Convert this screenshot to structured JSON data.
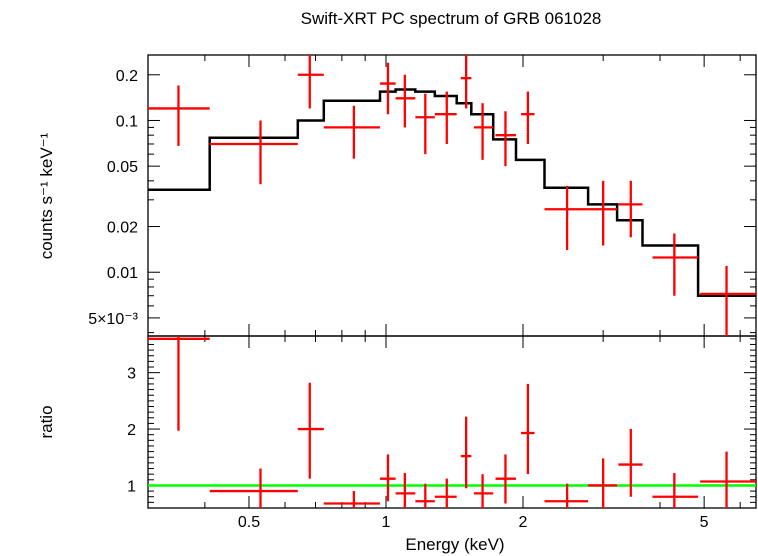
{
  "chart_data": [
    {
      "type": "scatter",
      "title": "Swift-XRT PC spectrum of GRB 061028",
      "ylabel": "counts s⁻¹ keV⁻¹",
      "xlabel": "",
      "xscale": "log",
      "yscale": "log",
      "xlim": [
        0.3,
        6.5
      ],
      "ylim": [
        0.0038,
        0.27
      ],
      "y_ticks": [
        {
          "value": 0.005,
          "label": "5×10⁻³"
        },
        {
          "value": 0.01,
          "label": "0.01"
        },
        {
          "value": 0.02,
          "label": "0.02"
        },
        {
          "value": 0.05,
          "label": "0.05"
        },
        {
          "value": 0.1,
          "label": "0.1"
        },
        {
          "value": 0.2,
          "label": "0.2"
        }
      ],
      "data_color": "#ff0000",
      "model_color": "#000000",
      "series": [
        {
          "kind": "data",
          "points": [
            {
              "x": 0.35,
              "xlo": 0.3,
              "xhi": 0.41,
              "y": 0.12,
              "ylo": 0.068,
              "yhi": 0.17
            },
            {
              "x": 0.53,
              "xlo": 0.41,
              "xhi": 0.64,
              "y": 0.07,
              "ylo": 0.038,
              "yhi": 0.1
            },
            {
              "x": 0.68,
              "xlo": 0.64,
              "xhi": 0.73,
              "y": 0.2,
              "ylo": 0.12,
              "yhi": 0.29
            },
            {
              "x": 0.85,
              "xlo": 0.73,
              "xhi": 0.97,
              "y": 0.09,
              "ylo": 0.056,
              "yhi": 0.125
            },
            {
              "x": 1.01,
              "xlo": 0.97,
              "xhi": 1.05,
              "y": 0.175,
              "ylo": 0.11,
              "yhi": 0.24
            },
            {
              "x": 1.1,
              "xlo": 1.05,
              "xhi": 1.16,
              "y": 0.14,
              "ylo": 0.09,
              "yhi": 0.2
            },
            {
              "x": 1.22,
              "xlo": 1.16,
              "xhi": 1.28,
              "y": 0.105,
              "ylo": 0.06,
              "yhi": 0.15
            },
            {
              "x": 1.36,
              "xlo": 1.28,
              "xhi": 1.43,
              "y": 0.11,
              "ylo": 0.07,
              "yhi": 0.155
            },
            {
              "x": 1.5,
              "xlo": 1.46,
              "xhi": 1.54,
              "y": 0.19,
              "ylo": 0.12,
              "yhi": 0.29
            },
            {
              "x": 1.63,
              "xlo": 1.56,
              "xhi": 1.72,
              "y": 0.09,
              "ylo": 0.055,
              "yhi": 0.13
            },
            {
              "x": 1.83,
              "xlo": 1.74,
              "xhi": 1.93,
              "y": 0.08,
              "ylo": 0.05,
              "yhi": 0.115
            },
            {
              "x": 2.05,
              "xlo": 1.98,
              "xhi": 2.12,
              "y": 0.11,
              "ylo": 0.07,
              "yhi": 0.155
            },
            {
              "x": 2.5,
              "xlo": 2.23,
              "xhi": 2.78,
              "y": 0.026,
              "ylo": 0.014,
              "yhi": 0.037
            },
            {
              "x": 3.0,
              "xlo": 2.78,
              "xhi": 3.22,
              "y": 0.026,
              "ylo": 0.015,
              "yhi": 0.04
            },
            {
              "x": 3.45,
              "xlo": 3.24,
              "xhi": 3.66,
              "y": 0.028,
              "ylo": 0.017,
              "yhi": 0.04
            },
            {
              "x": 4.3,
              "xlo": 3.85,
              "xhi": 4.85,
              "y": 0.0125,
              "ylo": 0.007,
              "yhi": 0.018
            },
            {
              "x": 5.6,
              "xlo": 4.9,
              "xhi": 6.5,
              "y": 0.0072,
              "ylo": 0.0038,
              "yhi": 0.011
            }
          ]
        },
        {
          "kind": "model",
          "steps": [
            {
              "xlo": 0.3,
              "xhi": 0.41,
              "y": 0.035
            },
            {
              "xlo": 0.41,
              "xhi": 0.64,
              "y": 0.077
            },
            {
              "xlo": 0.64,
              "xhi": 0.73,
              "y": 0.1
            },
            {
              "xlo": 0.73,
              "xhi": 0.97,
              "y": 0.135
            },
            {
              "xlo": 0.97,
              "xhi": 1.05,
              "y": 0.155
            },
            {
              "xlo": 1.05,
              "xhi": 1.16,
              "y": 0.16
            },
            {
              "xlo": 1.16,
              "xhi": 1.28,
              "y": 0.155
            },
            {
              "xlo": 1.28,
              "xhi": 1.43,
              "y": 0.145
            },
            {
              "xlo": 1.43,
              "xhi": 1.54,
              "y": 0.13
            },
            {
              "xlo": 1.54,
              "xhi": 1.72,
              "y": 0.11
            },
            {
              "xlo": 1.72,
              "xhi": 1.93,
              "y": 0.075
            },
            {
              "xlo": 1.93,
              "xhi": 2.23,
              "y": 0.055
            },
            {
              "xlo": 2.23,
              "xhi": 2.78,
              "y": 0.036
            },
            {
              "xlo": 2.78,
              "xhi": 3.22,
              "y": 0.028
            },
            {
              "xlo": 3.22,
              "xhi": 3.66,
              "y": 0.022
            },
            {
              "xlo": 3.66,
              "xhi": 4.85,
              "y": 0.015
            },
            {
              "xlo": 4.85,
              "xhi": 6.5,
              "y": 0.007
            }
          ]
        }
      ]
    },
    {
      "type": "scatter",
      "title": "",
      "xlabel": "Energy (keV)",
      "ylabel": "ratio",
      "xscale": "log",
      "yscale": "linear",
      "xlim": [
        0.3,
        6.5
      ],
      "ylim": [
        0.6,
        3.65
      ],
      "x_ticks": [
        {
          "value": 0.5,
          "label": "0.5"
        },
        {
          "value": 1,
          "label": "1"
        },
        {
          "value": 2,
          "label": "2"
        },
        {
          "value": 5,
          "label": "5"
        }
      ],
      "y_ticks": [
        {
          "value": 1,
          "label": "1"
        },
        {
          "value": 2,
          "label": "2"
        },
        {
          "value": 3,
          "label": "3"
        }
      ],
      "unity_line": 1,
      "unity_color": "#00ff00",
      "series": [
        {
          "kind": "data",
          "points": [
            {
              "x": 0.35,
              "xlo": 0.3,
              "xhi": 0.41,
              "y": 3.6,
              "ylo": 1.97,
              "yhi": 3.65
            },
            {
              "x": 0.53,
              "xlo": 0.41,
              "xhi": 0.64,
              "y": 0.9,
              "ylo": 0.6,
              "yhi": 1.3
            },
            {
              "x": 0.68,
              "xlo": 0.64,
              "xhi": 0.73,
              "y": 2.0,
              "ylo": 1.12,
              "yhi": 2.82
            },
            {
              "x": 0.85,
              "xlo": 0.73,
              "xhi": 0.97,
              "y": 0.68,
              "ylo": 0.6,
              "yhi": 0.9
            },
            {
              "x": 1.01,
              "xlo": 0.97,
              "xhi": 1.05,
              "y": 1.12,
              "ylo": 0.72,
              "yhi": 1.55
            },
            {
              "x": 1.1,
              "xlo": 1.05,
              "xhi": 1.16,
              "y": 0.86,
              "ylo": 0.6,
              "yhi": 1.22
            },
            {
              "x": 1.22,
              "xlo": 1.16,
              "xhi": 1.28,
              "y": 0.72,
              "ylo": 0.6,
              "yhi": 1.03
            },
            {
              "x": 1.36,
              "xlo": 1.28,
              "xhi": 1.43,
              "y": 0.8,
              "ylo": 0.6,
              "yhi": 1.12
            },
            {
              "x": 1.5,
              "xlo": 1.46,
              "xhi": 1.54,
              "y": 1.52,
              "ylo": 0.95,
              "yhi": 2.22
            },
            {
              "x": 1.63,
              "xlo": 1.56,
              "xhi": 1.72,
              "y": 0.86,
              "ylo": 0.6,
              "yhi": 1.2
            },
            {
              "x": 1.83,
              "xlo": 1.74,
              "xhi": 1.93,
              "y": 1.12,
              "ylo": 0.68,
              "yhi": 1.55
            },
            {
              "x": 2.05,
              "xlo": 1.98,
              "xhi": 2.12,
              "y": 1.93,
              "ylo": 1.2,
              "yhi": 2.8
            },
            {
              "x": 2.5,
              "xlo": 2.23,
              "xhi": 2.78,
              "y": 0.72,
              "ylo": 0.6,
              "yhi": 1.03
            },
            {
              "x": 3.0,
              "xlo": 2.78,
              "xhi": 3.22,
              "y": 1.0,
              "ylo": 0.6,
              "yhi": 1.48
            },
            {
              "x": 3.45,
              "xlo": 3.24,
              "xhi": 3.66,
              "y": 1.37,
              "ylo": 0.8,
              "yhi": 2.0
            },
            {
              "x": 4.3,
              "xlo": 3.85,
              "xhi": 4.85,
              "y": 0.8,
              "ylo": 0.6,
              "yhi": 1.22
            },
            {
              "x": 5.6,
              "xlo": 4.9,
              "xhi": 6.5,
              "y": 1.07,
              "ylo": 0.6,
              "yhi": 1.6
            }
          ]
        }
      ]
    }
  ]
}
